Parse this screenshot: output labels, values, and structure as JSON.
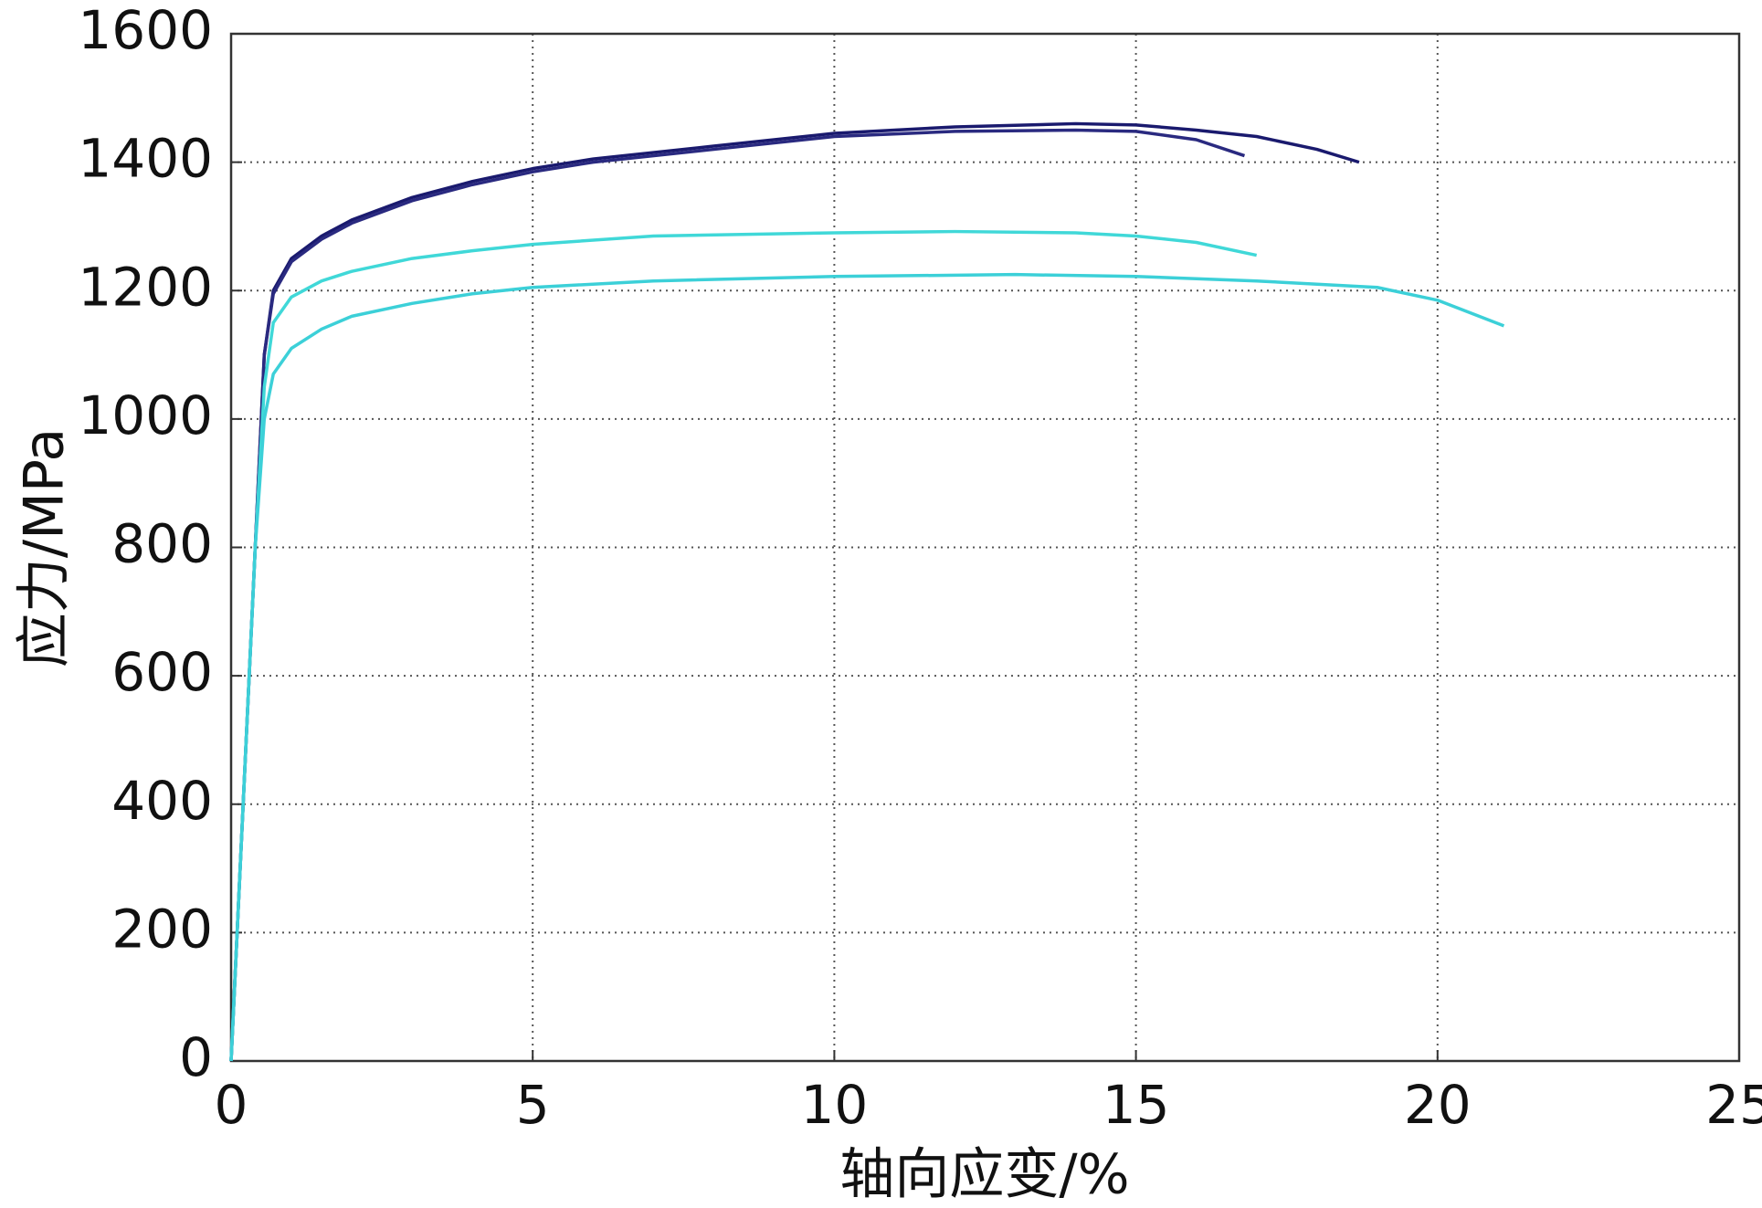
{
  "chart_data": {
    "type": "line",
    "xlabel": "轴向应变/%",
    "ylabel": "应力/MPa",
    "xlim": [
      0,
      25
    ],
    "xticks": [
      0,
      5,
      10,
      15,
      20,
      25
    ],
    "ylim": [
      0,
      1600
    ],
    "yticks": [
      0,
      200,
      400,
      600,
      800,
      1000,
      1200,
      1400,
      1600
    ],
    "grid": true,
    "series": [
      {
        "color": "#1a1a6e",
        "x": [
          0,
          0.2,
          0.4,
          0.55,
          0.7,
          1,
          1.5,
          2,
          3,
          4,
          5,
          6,
          8,
          10,
          12,
          14,
          15,
          16,
          17,
          18,
          18.7
        ],
        "values": [
          0,
          400,
          800,
          1100,
          1200,
          1250,
          1285,
          1310,
          1345,
          1370,
          1390,
          1405,
          1425,
          1445,
          1455,
          1460,
          1458,
          1450,
          1440,
          1420,
          1400
        ]
      },
      {
        "color": "#2a2a80",
        "x": [
          0,
          0.2,
          0.4,
          0.55,
          0.7,
          1,
          1.5,
          2,
          3,
          4,
          5,
          6,
          8,
          10,
          12,
          14,
          15,
          16,
          16.8
        ],
        "values": [
          0,
          400,
          800,
          1100,
          1195,
          1245,
          1280,
          1305,
          1340,
          1365,
          1385,
          1400,
          1420,
          1440,
          1448,
          1450,
          1448,
          1435,
          1410
        ]
      },
      {
        "color": "#40d8d8",
        "x": [
          0,
          0.2,
          0.4,
          0.55,
          0.7,
          1,
          1.5,
          2,
          3,
          4,
          5,
          7,
          10,
          12,
          14,
          15,
          16,
          17
        ],
        "values": [
          0,
          400,
          800,
          1050,
          1150,
          1190,
          1215,
          1230,
          1250,
          1262,
          1272,
          1285,
          1290,
          1292,
          1290,
          1285,
          1275,
          1255
        ]
      },
      {
        "color": "#3cd0d8",
        "x": [
          0,
          0.2,
          0.4,
          0.55,
          0.7,
          1,
          1.5,
          2,
          3,
          4,
          5,
          7,
          10,
          13,
          15,
          17,
          19,
          20,
          21.1
        ],
        "values": [
          0,
          400,
          800,
          1000,
          1070,
          1110,
          1140,
          1160,
          1180,
          1195,
          1205,
          1215,
          1222,
          1225,
          1222,
          1215,
          1205,
          1185,
          1145
        ]
      }
    ]
  }
}
